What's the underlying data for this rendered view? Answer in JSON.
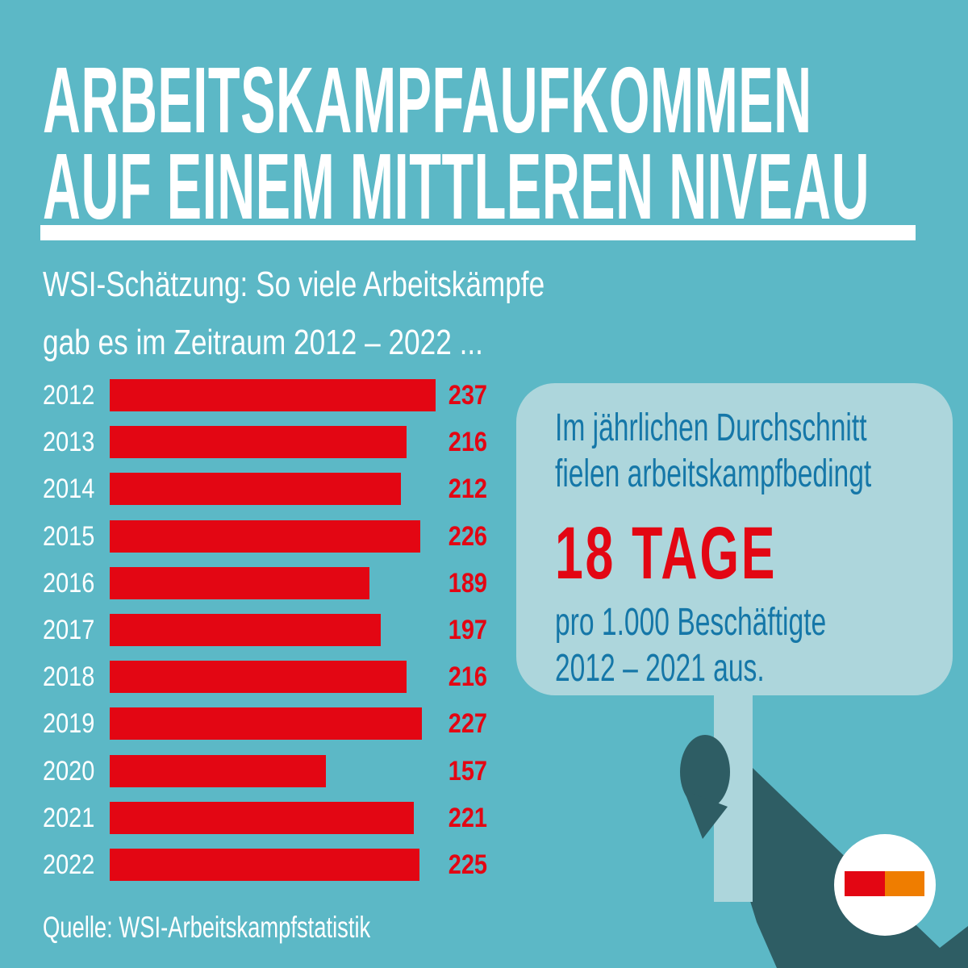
{
  "page": {
    "background": "#5cb8c6"
  },
  "title": {
    "line1": "ARBEITSKAMPFAUFKOMMEN",
    "line2": "AUF EINEM MITTLEREN NIVEAU",
    "color": "#ffffff"
  },
  "subtitle": {
    "line1": "WSI-Schätzung: So viele Arbeitskämpfe",
    "line2": "gab es im Zeitraum 2012 – 2022 ...",
    "color": "#ffffff"
  },
  "chart_data": {
    "type": "bar",
    "orientation": "horizontal",
    "title": "WSI-Schätzung: So viele Arbeitskämpfe gab es im Zeitraum 2012 – 2022 ...",
    "categories": [
      "2012",
      "2013",
      "2014",
      "2015",
      "2016",
      "2017",
      "2018",
      "2019",
      "2020",
      "2021",
      "2022"
    ],
    "values": [
      237,
      216,
      212,
      226,
      189,
      197,
      216,
      227,
      157,
      221,
      225
    ],
    "xlim": [
      0,
      237
    ],
    "grid": false,
    "legend": false,
    "bar_color": "#e30613",
    "category_label_color": "#ffffff",
    "value_label_color": "#e30613"
  },
  "callout": {
    "intro_line1": "Im jährlichen Durchschnitt",
    "intro_line2": "fielen arbeitskampfbedingt",
    "highlight": "18 TAGE",
    "outro_line1": "pro 1.000 Beschäftigte",
    "outro_line2": "2012 – 2021 aus.",
    "background": "#add6dc",
    "text_color": "#1577a8",
    "highlight_color": "#e30613"
  },
  "illustration": {
    "description": "dark teal hand and arm holding the sign like a protest placard",
    "hand_color": "#2e5d64",
    "sign_color": "#add6dc"
  },
  "logo": {
    "name": "wsi-color-mark",
    "circle_color": "#ffffff",
    "red": "#e30613",
    "orange": "#ef7d00"
  },
  "source": {
    "label": "Quelle: WSI-Arbeitskampfstatistik",
    "color": "#ffffff"
  }
}
